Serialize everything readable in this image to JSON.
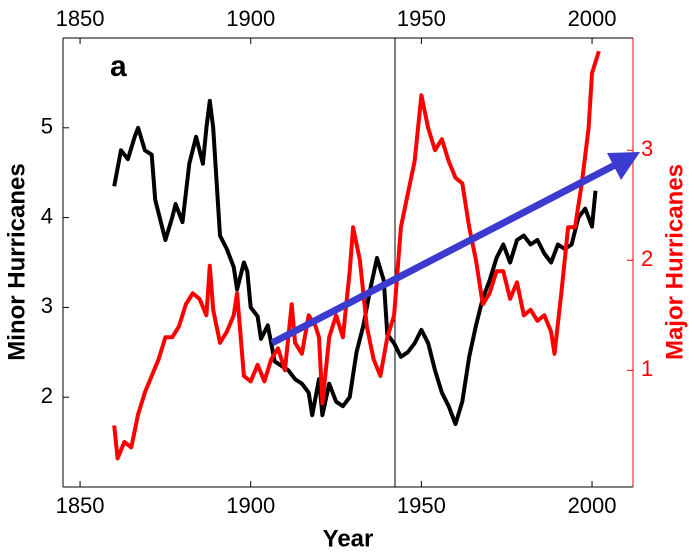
{
  "chart_data": {
    "type": "line",
    "panel_label": "a",
    "xlabel": "Year",
    "ylabel": "Minor Hurricanes",
    "y2label": "Major Hurricanes",
    "xlim": [
      1845,
      2012
    ],
    "xticks": [
      1850,
      1900,
      1950,
      2000
    ],
    "ylim": [
      1,
      6
    ],
    "yticks": [
      2,
      3,
      4,
      5
    ],
    "y2lim": [
      -0.06,
      4.02
    ],
    "y2ticks": [
      1,
      2,
      3
    ],
    "y2color": "#ff0000",
    "series": [
      {
        "name": "Minor Hurricanes",
        "color": "#000000",
        "x": [
          1860,
          1862,
          1864,
          1866,
          1867,
          1869,
          1871,
          1872,
          1874,
          1875,
          1877,
          1878,
          1880,
          1882,
          1884,
          1886,
          1887,
          1888,
          1889,
          1890,
          1891,
          1893,
          1895,
          1896,
          1898,
          1899,
          1900,
          1902,
          1903,
          1905,
          1907,
          1909,
          1911,
          1913,
          1915,
          1917,
          1918,
          1920,
          1921,
          1923,
          1925,
          1927,
          1929,
          1931,
          1933,
          1935,
          1937,
          1939,
          1940,
          1942,
          1944,
          1946,
          1948,
          1950,
          1952,
          1954,
          1956,
          1958,
          1960,
          1962,
          1964,
          1966,
          1968,
          1970,
          1972,
          1974,
          1976,
          1978,
          1980,
          1982,
          1984,
          1986,
          1988,
          1990,
          1992,
          1994,
          1996,
          1998,
          2000,
          2001
        ],
        "values": [
          4.35,
          4.75,
          4.65,
          4.9,
          5.0,
          4.75,
          4.7,
          4.2,
          3.9,
          3.75,
          4.0,
          4.15,
          3.95,
          4.6,
          4.9,
          4.6,
          5.0,
          5.3,
          5.0,
          4.4,
          3.8,
          3.65,
          3.45,
          3.2,
          3.5,
          3.4,
          3.0,
          2.9,
          2.65,
          2.8,
          2.4,
          2.35,
          2.3,
          2.2,
          2.15,
          2.05,
          1.8,
          2.2,
          1.8,
          2.15,
          1.95,
          1.9,
          2.0,
          2.5,
          2.8,
          3.2,
          3.55,
          3.3,
          2.7,
          2.6,
          2.45,
          2.5,
          2.6,
          2.75,
          2.6,
          2.3,
          2.05,
          1.9,
          1.7,
          1.95,
          2.45,
          2.8,
          3.1,
          3.3,
          3.55,
          3.7,
          3.5,
          3.75,
          3.8,
          3.7,
          3.75,
          3.6,
          3.5,
          3.7,
          3.65,
          3.7,
          4.0,
          4.1,
          3.9,
          4.3
        ]
      },
      {
        "name": "Major Hurricanes",
        "color": "#ff0000",
        "axis": "y2",
        "x": [
          1860,
          1861,
          1863,
          1865,
          1867,
          1869,
          1871,
          1873,
          1875,
          1877,
          1879,
          1881,
          1883,
          1885,
          1887,
          1888,
          1889,
          1891,
          1893,
          1895,
          1896,
          1898,
          1900,
          1902,
          1904,
          1906,
          1908,
          1910,
          1912,
          1913,
          1915,
          1917,
          1919,
          1920,
          1921,
          1923,
          1925,
          1927,
          1929,
          1930,
          1932,
          1934,
          1936,
          1938,
          1940,
          1942,
          1944,
          1946,
          1948,
          1950,
          1952,
          1954,
          1956,
          1958,
          1960,
          1962,
          1964,
          1966,
          1968,
          1970,
          1972,
          1974,
          1976,
          1978,
          1980,
          1982,
          1984,
          1986,
          1988,
          1989,
          1991,
          1993,
          1995,
          1997,
          1999,
          2000,
          2002
        ],
        "values": [
          0.5,
          0.2,
          0.35,
          0.3,
          0.6,
          0.8,
          0.95,
          1.1,
          1.3,
          1.3,
          1.4,
          1.6,
          1.7,
          1.65,
          1.5,
          1.95,
          1.55,
          1.25,
          1.35,
          1.5,
          1.7,
          0.95,
          0.9,
          1.05,
          0.9,
          1.1,
          1.2,
          1.0,
          1.6,
          1.25,
          1.15,
          1.5,
          1.4,
          1.3,
          0.7,
          1.3,
          1.5,
          1.3,
          1.9,
          2.3,
          2.0,
          1.4,
          1.1,
          0.95,
          1.3,
          1.5,
          2.3,
          2.6,
          2.9,
          3.5,
          3.2,
          3.0,
          3.1,
          2.9,
          2.75,
          2.7,
          2.3,
          2.0,
          1.6,
          1.7,
          1.9,
          1.9,
          1.65,
          1.8,
          1.5,
          1.55,
          1.45,
          1.5,
          1.35,
          1.15,
          1.7,
          2.3,
          2.3,
          2.7,
          3.2,
          3.7,
          3.9
        ]
      }
    ]
  }
}
